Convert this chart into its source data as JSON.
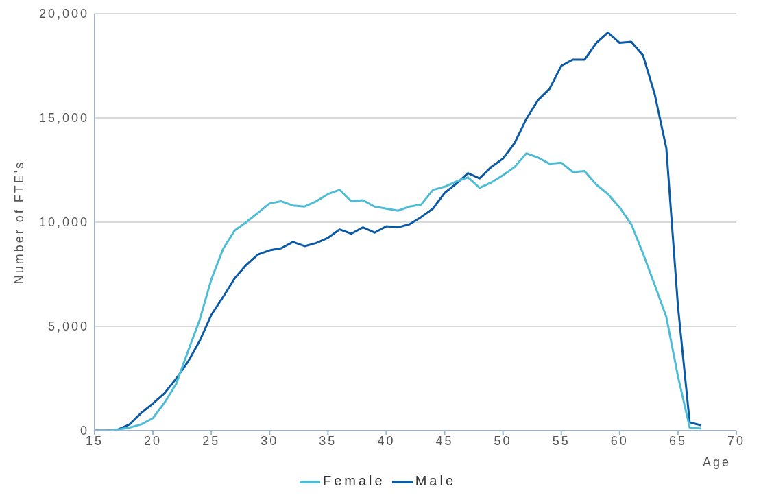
{
  "chart_data": {
    "type": "line",
    "xlabel": "Age",
    "ylabel": "Number of FTE's",
    "x": [
      15,
      16,
      17,
      18,
      19,
      20,
      21,
      22,
      23,
      24,
      25,
      26,
      27,
      28,
      29,
      30,
      31,
      32,
      33,
      34,
      35,
      36,
      37,
      38,
      39,
      40,
      41,
      42,
      43,
      44,
      45,
      46,
      47,
      48,
      49,
      50,
      51,
      52,
      53,
      54,
      55,
      56,
      57,
      58,
      59,
      60,
      61,
      62,
      63,
      64,
      65,
      66,
      67
    ],
    "series": [
      {
        "name": "Male",
        "color": "#0b5aa6",
        "values": [
          0,
          0,
          50,
          300,
          850,
          1300,
          1800,
          2500,
          3300,
          4300,
          5550,
          6400,
          7300,
          7950,
          8450,
          8650,
          8750,
          9050,
          8850,
          9000,
          9250,
          9650,
          9450,
          9750,
          9500,
          9800,
          9750,
          9900,
          10250,
          10650,
          11400,
          11850,
          12350,
          12100,
          12650,
          13050,
          13800,
          14950,
          15850,
          16400,
          17500,
          17800,
          17800,
          18600,
          19100,
          18600,
          18650,
          18000,
          16150,
          13550,
          5950,
          400,
          250
        ]
      },
      {
        "name": "Female",
        "color": "#4fbcd6",
        "values": [
          0,
          0,
          50,
          150,
          300,
          600,
          1350,
          2250,
          3800,
          5300,
          7250,
          8700,
          9600,
          10000,
          10450,
          10900,
          11000,
          10800,
          10750,
          11000,
          11350,
          11550,
          11000,
          11050,
          10750,
          10650,
          10550,
          10750,
          10850,
          11550,
          11700,
          11950,
          12150,
          11650,
          11900,
          12250,
          12650,
          13300,
          13100,
          12800,
          12850,
          12400,
          12450,
          11800,
          11350,
          10700,
          9900,
          8500,
          7000,
          5450,
          2600,
          150,
          100
        ]
      }
    ],
    "xlim": [
      15,
      70
    ],
    "xticks": [
      15,
      20,
      25,
      30,
      35,
      40,
      45,
      50,
      55,
      60,
      65,
      70
    ],
    "ylim": [
      0,
      20000
    ],
    "yticks": [
      {
        "value": 0,
        "label": "0"
      },
      {
        "value": 5000,
        "label": "5,000"
      },
      {
        "value": 10000,
        "label": "10,000"
      },
      {
        "value": 15000,
        "label": "15,000"
      },
      {
        "value": 20000,
        "label": "20,000"
      }
    ],
    "grid": "y",
    "legend": "bottom",
    "marker": "none",
    "line_style": "solid"
  }
}
